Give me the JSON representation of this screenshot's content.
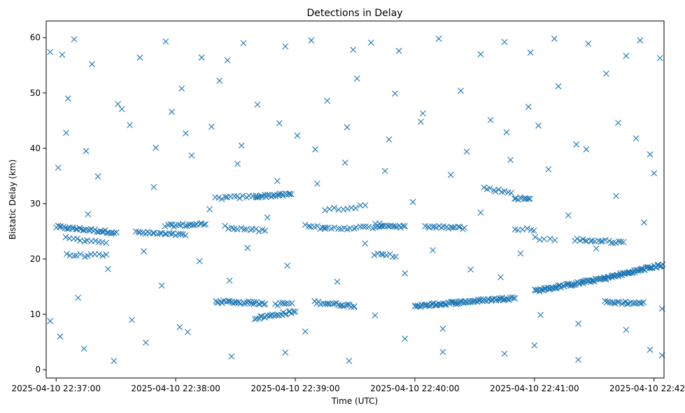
{
  "chart_data": {
    "type": "scatter",
    "title": "Detections in Delay",
    "xlabel": "Time (UTC)",
    "ylabel": "Bistatic Delay (km)",
    "marker": "x",
    "color": "#1f77b4",
    "grid": false,
    "x_ticks": [
      "2025-04-10 22:37:00",
      "2025-04-10 22:38:00",
      "2025-04-10 22:39:00",
      "2025-04-10 22:40:00",
      "2025-04-10 22:41:00",
      "2025-04-10 22:42:00"
    ],
    "xlim": [
      "2025-04-10 22:36:55",
      "2025-04-10 22:42:05"
    ],
    "y_ticks": [
      0,
      10,
      20,
      30,
      40,
      50,
      60
    ],
    "ylim": [
      -1.5,
      63
    ],
    "tracks": [
      {
        "start": "2025-04-10 22:37:00",
        "end": "2025-04-10 22:37:30",
        "y0": 25.8,
        "y1": 24.8,
        "count": 35
      },
      {
        "start": "2025-04-10 22:37:40",
        "end": "2025-04-10 22:38:05",
        "y0": 24.8,
        "y1": 24.3,
        "count": 22
      },
      {
        "start": "2025-04-10 22:37:55",
        "end": "2025-04-10 22:38:15",
        "y0": 26.0,
        "y1": 26.3,
        "count": 20
      },
      {
        "start": "2025-04-10 22:38:25",
        "end": "2025-04-10 22:38:45",
        "y0": 25.8,
        "y1": 25.0,
        "count": 14
      },
      {
        "start": "2025-04-10 22:37:05",
        "end": "2025-04-10 22:37:25",
        "y0": 23.8,
        "y1": 23.0,
        "count": 12
      },
      {
        "start": "2025-04-10 22:37:05",
        "end": "2025-04-10 22:37:25",
        "y0": 20.7,
        "y1": 20.6,
        "count": 12
      },
      {
        "start": "2025-04-10 22:38:20",
        "end": "2025-04-10 22:38:40",
        "y0": 31.0,
        "y1": 31.3,
        "count": 14
      },
      {
        "start": "2025-04-10 22:38:40",
        "end": "2025-04-10 22:38:58",
        "y0": 31.3,
        "y1": 31.7,
        "count": 24
      },
      {
        "start": "2025-04-10 22:38:20",
        "end": "2025-04-10 22:38:45",
        "y0": 12.3,
        "y1": 12.0,
        "count": 30
      },
      {
        "start": "2025-04-10 22:38:40",
        "end": "2025-04-10 22:39:00",
        "y0": 9.3,
        "y1": 10.5,
        "count": 24
      },
      {
        "start": "2025-04-10 22:38:50",
        "end": "2025-04-10 22:38:58",
        "y0": 11.8,
        "y1": 12.0,
        "count": 8
      },
      {
        "start": "2025-04-10 22:39:05",
        "end": "2025-04-10 22:39:15",
        "y0": 26.0,
        "y1": 25.5,
        "count": 8
      },
      {
        "start": "2025-04-10 22:39:10",
        "end": "2025-04-10 22:39:30",
        "y0": 12.2,
        "y1": 11.5,
        "count": 22
      },
      {
        "start": "2025-04-10 22:39:15",
        "end": "2025-04-10 22:39:35",
        "y0": 29.0,
        "y1": 29.5,
        "count": 10
      },
      {
        "start": "2025-04-10 22:39:15",
        "end": "2025-04-10 22:39:45",
        "y0": 25.5,
        "y1": 25.8,
        "count": 20
      },
      {
        "start": "2025-04-10 22:39:40",
        "end": "2025-04-10 22:39:55",
        "y0": 26.2,
        "y1": 25.8,
        "count": 16
      },
      {
        "start": "2025-04-10 22:39:40",
        "end": "2025-04-10 22:39:50",
        "y0": 20.8,
        "y1": 20.6,
        "count": 8
      },
      {
        "start": "2025-04-10 22:40:05",
        "end": "2025-04-10 22:40:25",
        "y0": 25.8,
        "y1": 25.6,
        "count": 18
      },
      {
        "start": "2025-04-10 22:40:00",
        "end": "2025-04-10 22:40:50",
        "y0": 11.5,
        "y1": 13.0,
        "count": 80
      },
      {
        "start": "2025-04-10 22:40:35",
        "end": "2025-04-10 22:40:48",
        "y0": 32.8,
        "y1": 32.0,
        "count": 10
      },
      {
        "start": "2025-04-10 22:40:50",
        "end": "2025-04-10 22:40:58",
        "y0": 31.0,
        "y1": 30.8,
        "count": 10
      },
      {
        "start": "2025-04-10 22:40:50",
        "end": "2025-04-10 22:41:00",
        "y0": 25.5,
        "y1": 25.3,
        "count": 6
      },
      {
        "start": "2025-04-10 22:41:00",
        "end": "2025-04-10 22:41:35",
        "y0": 14.2,
        "y1": 16.5,
        "count": 60
      },
      {
        "start": "2025-04-10 22:41:35",
        "end": "2025-04-10 22:42:05",
        "y0": 16.5,
        "y1": 19.0,
        "count": 55
      },
      {
        "start": "2025-04-10 22:41:35",
        "end": "2025-04-10 22:41:55",
        "y0": 12.2,
        "y1": 12.0,
        "count": 22
      },
      {
        "start": "2025-04-10 22:41:20",
        "end": "2025-04-10 22:41:45",
        "y0": 23.5,
        "y1": 23.0,
        "count": 20
      },
      {
        "start": "2025-04-10 22:41:00",
        "end": "2025-04-10 22:41:10",
        "y0": 23.8,
        "y1": 23.5,
        "count": 5
      }
    ],
    "scatter_points": [
      {
        "t": "2025-04-10 22:36:57",
        "y": 57.4
      },
      {
        "t": "2025-04-10 22:37:03",
        "y": 56.9
      },
      {
        "t": "2025-04-10 22:37:09",
        "y": 59.7
      },
      {
        "t": "2025-04-10 22:37:18",
        "y": 55.2
      },
      {
        "t": "2025-04-10 22:37:31",
        "y": 48.0
      },
      {
        "t": "2025-04-10 22:37:42",
        "y": 56.4
      },
      {
        "t": "2025-04-10 22:37:55",
        "y": 59.3
      },
      {
        "t": "2025-04-10 22:38:03",
        "y": 50.8
      },
      {
        "t": "2025-04-10 22:38:13",
        "y": 56.4
      },
      {
        "t": "2025-04-10 22:38:26",
        "y": 55.9
      },
      {
        "t": "2025-04-10 22:38:34",
        "y": 59.0
      },
      {
        "t": "2025-04-10 22:38:55",
        "y": 58.4
      },
      {
        "t": "2025-04-10 22:39:08",
        "y": 59.5
      },
      {
        "t": "2025-04-10 22:39:29",
        "y": 57.8
      },
      {
        "t": "2025-04-10 22:39:38",
        "y": 59.1
      },
      {
        "t": "2025-04-10 22:39:52",
        "y": 57.6
      },
      {
        "t": "2025-04-10 22:40:12",
        "y": 59.8
      },
      {
        "t": "2025-04-10 22:40:33",
        "y": 57.0
      },
      {
        "t": "2025-04-10 22:40:45",
        "y": 59.2
      },
      {
        "t": "2025-04-10 22:40:58",
        "y": 57.3
      },
      {
        "t": "2025-04-10 22:41:10",
        "y": 59.8
      },
      {
        "t": "2025-04-10 22:41:27",
        "y": 58.9
      },
      {
        "t": "2025-04-10 22:41:46",
        "y": 56.7
      },
      {
        "t": "2025-04-10 22:41:53",
        "y": 59.5
      },
      {
        "t": "2025-04-10 22:42:03",
        "y": 56.3
      },
      {
        "t": "2025-04-10 22:37:05",
        "y": 42.8
      },
      {
        "t": "2025-04-10 22:37:15",
        "y": 39.5
      },
      {
        "t": "2025-04-10 22:37:37",
        "y": 44.2
      },
      {
        "t": "2025-04-10 22:37:50",
        "y": 40.1
      },
      {
        "t": "2025-04-10 22:38:05",
        "y": 42.7
      },
      {
        "t": "2025-04-10 22:38:18",
        "y": 43.9
      },
      {
        "t": "2025-04-10 22:38:33",
        "y": 40.5
      },
      {
        "t": "2025-04-10 22:38:52",
        "y": 44.5
      },
      {
        "t": "2025-04-10 22:39:10",
        "y": 39.8
      },
      {
        "t": "2025-04-10 22:39:26",
        "y": 43.8
      },
      {
        "t": "2025-04-10 22:39:47",
        "y": 41.6
      },
      {
        "t": "2025-04-10 22:40:03",
        "y": 44.8
      },
      {
        "t": "2025-04-10 22:40:26",
        "y": 39.4
      },
      {
        "t": "2025-04-10 22:40:46",
        "y": 42.9
      },
      {
        "t": "2025-04-10 22:41:02",
        "y": 44.1
      },
      {
        "t": "2025-04-10 22:41:21",
        "y": 40.7
      },
      {
        "t": "2025-04-10 22:41:42",
        "y": 44.6
      },
      {
        "t": "2025-04-10 22:41:58",
        "y": 38.9
      },
      {
        "t": "2025-04-10 22:37:02",
        "y": 6.0
      },
      {
        "t": "2025-04-10 22:37:14",
        "y": 3.8
      },
      {
        "t": "2025-04-10 22:37:29",
        "y": 1.6
      },
      {
        "t": "2025-04-10 22:37:45",
        "y": 4.9
      },
      {
        "t": "2025-04-10 22:38:06",
        "y": 6.8
      },
      {
        "t": "2025-04-10 22:38:28",
        "y": 2.4
      },
      {
        "t": "2025-04-10 22:38:55",
        "y": 3.1
      },
      {
        "t": "2025-04-10 22:39:27",
        "y": 1.6
      },
      {
        "t": "2025-04-10 22:39:55",
        "y": 5.6
      },
      {
        "t": "2025-04-10 22:40:14",
        "y": 3.2
      },
      {
        "t": "2025-04-10 22:40:45",
        "y": 2.9
      },
      {
        "t": "2025-04-10 22:41:00",
        "y": 4.4
      },
      {
        "t": "2025-04-10 22:41:22",
        "y": 1.8
      },
      {
        "t": "2025-04-10 22:41:58",
        "y": 3.6
      },
      {
        "t": "2025-04-10 22:42:04",
        "y": 2.6
      }
    ],
    "background_points": [
      {
        "t": "2025-04-10 22:36:57",
        "y": 8.8
      },
      {
        "t": "2025-04-10 22:37:01",
        "y": 36.5
      },
      {
        "t": "2025-04-10 22:37:06",
        "y": 49.0
      },
      {
        "t": "2025-04-10 22:37:11",
        "y": 13.0
      },
      {
        "t": "2025-04-10 22:37:16",
        "y": 28.1
      },
      {
        "t": "2025-04-10 22:37:21",
        "y": 34.9
      },
      {
        "t": "2025-04-10 22:37:26",
        "y": 18.2
      },
      {
        "t": "2025-04-10 22:37:33",
        "y": 47.1
      },
      {
        "t": "2025-04-10 22:37:38",
        "y": 9.0
      },
      {
        "t": "2025-04-10 22:37:44",
        "y": 21.4
      },
      {
        "t": "2025-04-10 22:37:49",
        "y": 33.0
      },
      {
        "t": "2025-04-10 22:37:53",
        "y": 15.2
      },
      {
        "t": "2025-04-10 22:37:58",
        "y": 46.6
      },
      {
        "t": "2025-04-10 22:38:02",
        "y": 7.7
      },
      {
        "t": "2025-04-10 22:38:08",
        "y": 38.7
      },
      {
        "t": "2025-04-10 22:38:12",
        "y": 19.6
      },
      {
        "t": "2025-04-10 22:38:17",
        "y": 29.0
      },
      {
        "t": "2025-04-10 22:38:22",
        "y": 52.2
      },
      {
        "t": "2025-04-10 22:38:27",
        "y": 16.1
      },
      {
        "t": "2025-04-10 22:38:31",
        "y": 37.2
      },
      {
        "t": "2025-04-10 22:38:36",
        "y": 22.0
      },
      {
        "t": "2025-04-10 22:38:41",
        "y": 47.9
      },
      {
        "t": "2025-04-10 22:38:46",
        "y": 27.5
      },
      {
        "t": "2025-04-10 22:38:51",
        "y": 34.1
      },
      {
        "t": "2025-04-10 22:38:56",
        "y": 18.8
      },
      {
        "t": "2025-04-10 22:39:01",
        "y": 42.3
      },
      {
        "t": "2025-04-10 22:39:05",
        "y": 6.9
      },
      {
        "t": "2025-04-10 22:39:11",
        "y": 33.6
      },
      {
        "t": "2025-04-10 22:39:16",
        "y": 48.6
      },
      {
        "t": "2025-04-10 22:39:21",
        "y": 15.9
      },
      {
        "t": "2025-04-10 22:39:25",
        "y": 37.4
      },
      {
        "t": "2025-04-10 22:39:31",
        "y": 52.6
      },
      {
        "t": "2025-04-10 22:39:35",
        "y": 22.8
      },
      {
        "t": "2025-04-10 22:39:40",
        "y": 9.8
      },
      {
        "t": "2025-04-10 22:39:45",
        "y": 35.9
      },
      {
        "t": "2025-04-10 22:39:50",
        "y": 49.9
      },
      {
        "t": "2025-04-10 22:39:55",
        "y": 17.4
      },
      {
        "t": "2025-04-10 22:39:59",
        "y": 30.3
      },
      {
        "t": "2025-04-10 22:40:04",
        "y": 46.3
      },
      {
        "t": "2025-04-10 22:40:09",
        "y": 21.6
      },
      {
        "t": "2025-04-10 22:40:14",
        "y": 7.4
      },
      {
        "t": "2025-04-10 22:40:18",
        "y": 35.2
      },
      {
        "t": "2025-04-10 22:40:23",
        "y": 50.4
      },
      {
        "t": "2025-04-10 22:40:28",
        "y": 18.1
      },
      {
        "t": "2025-04-10 22:40:33",
        "y": 28.4
      },
      {
        "t": "2025-04-10 22:40:38",
        "y": 45.1
      },
      {
        "t": "2025-04-10 22:40:43",
        "y": 16.7
      },
      {
        "t": "2025-04-10 22:40:48",
        "y": 37.9
      },
      {
        "t": "2025-04-10 22:40:53",
        "y": 21.0
      },
      {
        "t": "2025-04-10 22:40:57",
        "y": 47.5
      },
      {
        "t": "2025-04-10 22:41:03",
        "y": 9.9
      },
      {
        "t": "2025-04-10 22:41:07",
        "y": 36.2
      },
      {
        "t": "2025-04-10 22:41:12",
        "y": 51.2
      },
      {
        "t": "2025-04-10 22:41:17",
        "y": 27.9
      },
      {
        "t": "2025-04-10 22:41:22",
        "y": 8.3
      },
      {
        "t": "2025-04-10 22:41:26",
        "y": 39.8
      },
      {
        "t": "2025-04-10 22:41:31",
        "y": 21.9
      },
      {
        "t": "2025-04-10 22:41:36",
        "y": 53.5
      },
      {
        "t": "2025-04-10 22:41:41",
        "y": 31.4
      },
      {
        "t": "2025-04-10 22:41:46",
        "y": 7.2
      },
      {
        "t": "2025-04-10 22:41:51",
        "y": 41.8
      },
      {
        "t": "2025-04-10 22:41:55",
        "y": 26.6
      },
      {
        "t": "2025-04-10 22:42:00",
        "y": 35.5
      },
      {
        "t": "2025-04-10 22:42:04",
        "y": 11.0
      }
    ]
  }
}
